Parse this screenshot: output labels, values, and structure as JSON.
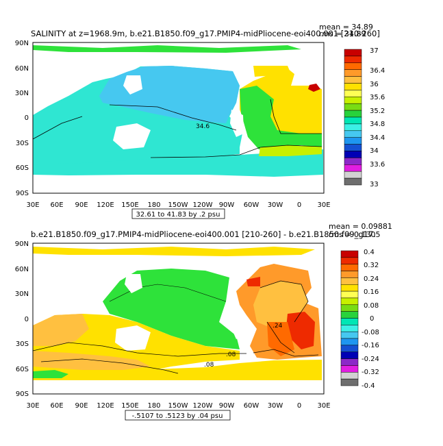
{
  "panels": [
    {
      "title": "SALINITY at z=1968.9m, b.e21.B1850.f09_g17.PMIP4-midPliocene-eoi400.001 [210-260]",
      "mean_label": "mean = 34.89",
      "rms_label": "rms = 34.89",
      "range_box": "32.61 to 41.83 by .2 psu",
      "contour_label": "34.6",
      "lat_ticks": [
        "90N",
        "60N",
        "30N",
        "0",
        "30S",
        "60S",
        "90S"
      ],
      "lon_ticks": [
        "30E",
        "60E",
        "90E",
        "120E",
        "150E",
        "180",
        "150W",
        "120W",
        "90W",
        "60W",
        "30W",
        "0",
        "30E"
      ],
      "colorbar_labels": [
        "37",
        "36.4",
        "36",
        "35.6",
        "35.2",
        "34.8",
        "34.4",
        "34",
        "33.6",
        "33"
      ],
      "colorbar_colors": [
        "#c80000",
        "#ee2a00",
        "#ff6a00",
        "#ff9a2a",
        "#ffc040",
        "#ffe100",
        "#ffff55",
        "#c8f000",
        "#78dc14",
        "#28d23c",
        "#00e6b4",
        "#3cf0e6",
        "#46c8f0",
        "#1e96f0",
        "#1450d2",
        "#0000b4",
        "#8c28c8",
        "#e11ee1",
        "#d2d2d2",
        "#6e6e6e"
      ]
    },
    {
      "title": "b.e21.B1850.f09_g17.PMIP4-midPliocene-eoi400.001 [210-260] - b.e21.B1850.f09_g17.",
      "mean_label": "mean = 0.09881",
      "rms_label": "rms = 0.1305",
      "range_box": "-.5107 to .5123 by .04 psu",
      "contour_labels": [
        ".08",
        ".08",
        ".24"
      ],
      "lat_ticks": [
        "90N",
        "60N",
        "30N",
        "0",
        "30S",
        "60S",
        "90S"
      ],
      "lon_ticks": [
        "30E",
        "60E",
        "90E",
        "120E",
        "150E",
        "180",
        "150W",
        "120W",
        "90W",
        "60W",
        "30W",
        "0",
        "30E"
      ],
      "colorbar_labels": [
        "0.4",
        "0.32",
        "0.24",
        "0.16",
        "0.08",
        "0",
        "-0.08",
        "-0.16",
        "-0.24",
        "-0.32",
        "-0.4"
      ],
      "colorbar_colors": [
        "#c80000",
        "#ee2a00",
        "#ff6a00",
        "#ff9a2a",
        "#ffc040",
        "#ffe100",
        "#ffff55",
        "#c8f000",
        "#78dc14",
        "#28d23c",
        "#00e6b4",
        "#3cf0e6",
        "#46c8f0",
        "#1e96f0",
        "#1450d2",
        "#0000b4",
        "#8c28c8",
        "#e11ee1",
        "#d2d2d2",
        "#6e6e6e"
      ]
    }
  ]
}
